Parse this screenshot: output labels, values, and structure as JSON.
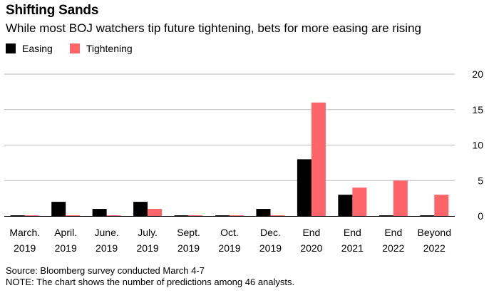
{
  "colors": {
    "easing": "#000000",
    "tightening": "#ff6469",
    "grid": "#b9b9b9",
    "axis": "#000000"
  },
  "chart_data": {
    "type": "bar",
    "title": "Shifting Sands",
    "subtitle": "While most BOJ watchers tip future tightening, bets for more easing are rising",
    "categories": [
      [
        "March.",
        "2019"
      ],
      [
        "April.",
        "2019"
      ],
      [
        "June.",
        "2019"
      ],
      [
        "July.",
        "2019"
      ],
      [
        "Sept.",
        "2019"
      ],
      [
        "Oct.",
        "2019"
      ],
      [
        "Dec.",
        "2019"
      ],
      [
        "End",
        "2020"
      ],
      [
        "End",
        "2021"
      ],
      [
        "End",
        "2022"
      ],
      [
        "Beyond",
        "2022"
      ]
    ],
    "series": [
      {
        "name": "Easing",
        "values": [
          0,
          2,
          1,
          2,
          0,
          0,
          1,
          8,
          3,
          0,
          0
        ]
      },
      {
        "name": "Tightening",
        "values": [
          0,
          0,
          0,
          1,
          0,
          0,
          0,
          16,
          4,
          5,
          3
        ]
      }
    ],
    "yticks": [
      0,
      5,
      10,
      15,
      20
    ],
    "ylim": [
      0,
      20
    ],
    "xlabel": "",
    "ylabel": "",
    "legend_position": "top-left",
    "grid": true
  },
  "notes": {
    "source": "Source: Bloomberg survey conducted March 4-7",
    "note": "NOTE: The chart shows the number of predictions among 46 analysts."
  }
}
